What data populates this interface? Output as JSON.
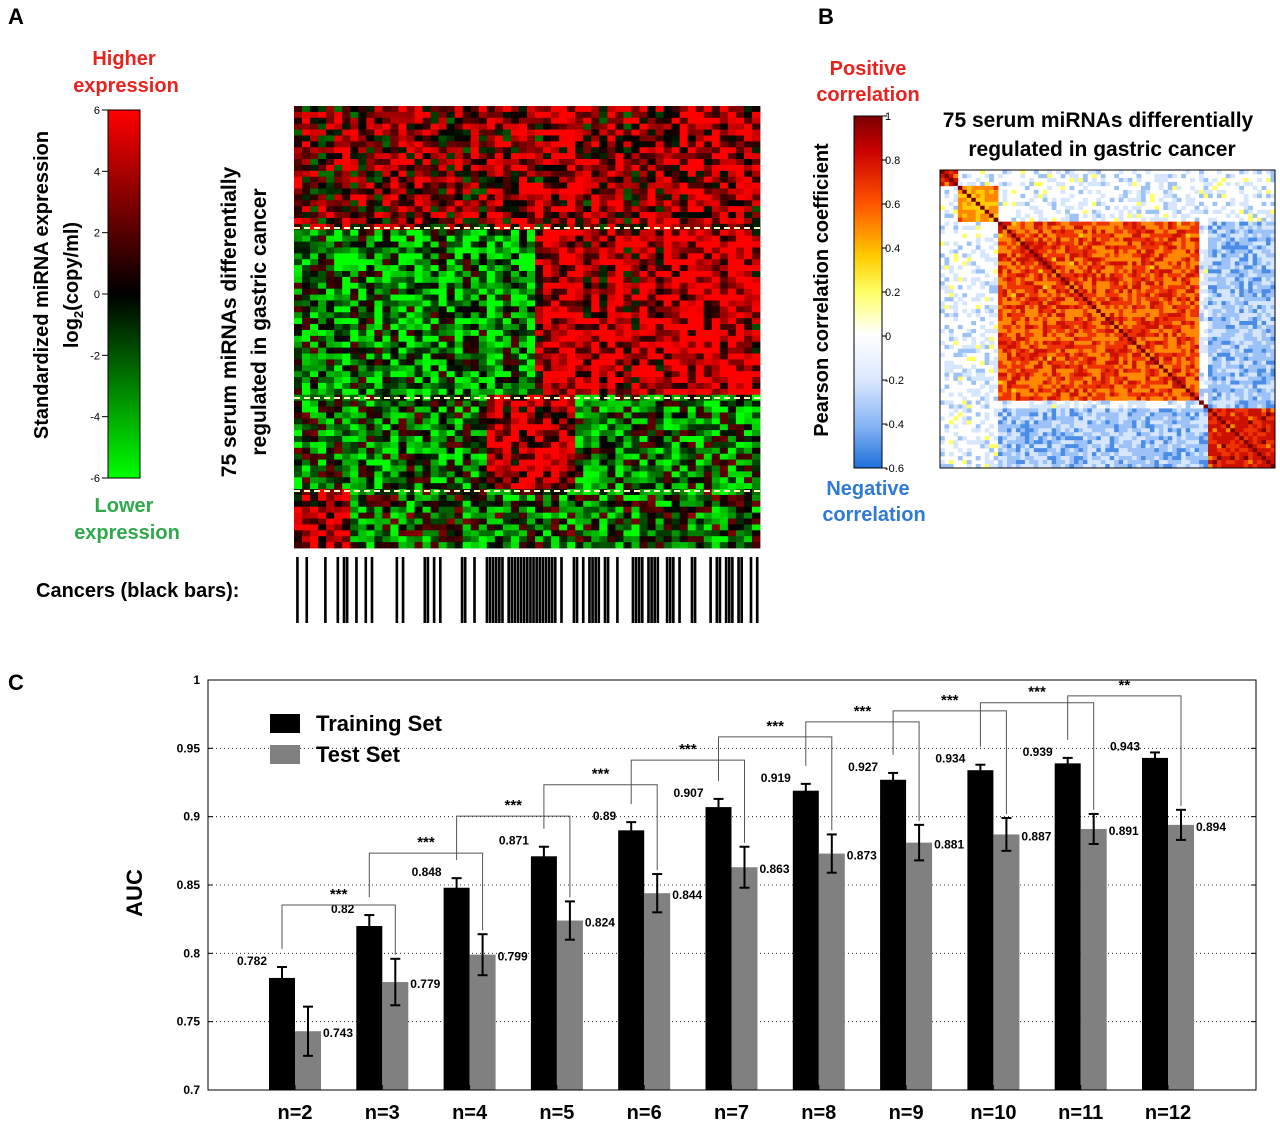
{
  "panel_a": {
    "letter": "A",
    "colorbar": {
      "top_label": [
        "Higher",
        "expression"
      ],
      "bottom_label": [
        "Lower",
        "expression"
      ],
      "axis_title_line1": "Standardized miRNA expression",
      "axis_title_line2_pre": "log",
      "axis_title_line2_sub": "2",
      "axis_title_line2_post": "(copy/ml)",
      "ticks": [
        "6",
        "4",
        "2",
        "0",
        "-2",
        "-4",
        "-6"
      ],
      "colors": {
        "high": "#ff0000",
        "mid": "#000000",
        "low": "#00ff00"
      }
    },
    "heatmap_title": [
      "75 serum miRNAs differentially",
      "regulated in gastric cancer"
    ],
    "cancer_label": "Cancers (black bars):"
  },
  "panel_b": {
    "letter": "B",
    "top_label": [
      "Positive",
      "correlation"
    ],
    "bottom_label": [
      "Negative",
      "correlation"
    ],
    "axis_title": "Pearson correlation coefficient",
    "ticks": [
      "1",
      "0.8",
      "0.6",
      "0.4",
      "0.2",
      "0",
      "-0.2",
      "-0.4",
      "-0.6"
    ],
    "matrix_title": [
      "75 serum miRNAs differentially",
      "regulated in gastric cancer"
    ],
    "colors": {
      "positive": "#cc0000",
      "negative": "#1e6fd9"
    }
  },
  "chart_data": {
    "type": "bar",
    "panel_letter": "C",
    "ylabel": "AUC",
    "ylim": [
      0.7,
      1
    ],
    "yticks": [
      "0.7",
      "0.75",
      "0.8",
      "0.85",
      "0.9",
      "0.95",
      "1"
    ],
    "categories": [
      "n=2",
      "n=3",
      "n=4",
      "n=5",
      "n=6",
      "n=7",
      "n=8",
      "n=9",
      "n=10",
      "n=11",
      "n=12"
    ],
    "series": [
      {
        "name": "Training Set",
        "color": "#000000",
        "values": [
          0.782,
          0.82,
          0.848,
          0.871,
          0.89,
          0.907,
          0.919,
          0.927,
          0.934,
          0.939,
          0.943
        ],
        "labels": [
          "0.782",
          "0.82",
          "0.848",
          "0.871",
          "0.89",
          "0.907",
          "0.919",
          "0.927",
          "0.934",
          "0.939",
          "0.943"
        ],
        "error": [
          0.008,
          0.008,
          0.007,
          0.007,
          0.006,
          0.006,
          0.005,
          0.005,
          0.004,
          0.004,
          0.004
        ]
      },
      {
        "name": "Test Set",
        "color": "#808080",
        "values": [
          0.743,
          0.779,
          0.799,
          0.824,
          0.844,
          0.863,
          0.873,
          0.881,
          0.887,
          0.891,
          0.894
        ],
        "labels": [
          "0.743",
          "0.779",
          "0.799",
          "0.824",
          "0.844",
          "0.863",
          "0.873",
          "0.881",
          "0.887",
          "0.891",
          "0.894"
        ],
        "error": [
          0.018,
          0.017,
          0.015,
          0.014,
          0.014,
          0.015,
          0.014,
          0.013,
          0.012,
          0.011,
          0.011
        ]
      }
    ],
    "significance": [
      {
        "from": 0,
        "to": 1,
        "label": "***"
      },
      {
        "from": 1,
        "to": 2,
        "label": "***"
      },
      {
        "from": 2,
        "to": 3,
        "label": "***"
      },
      {
        "from": 3,
        "to": 4,
        "label": "***"
      },
      {
        "from": 4,
        "to": 5,
        "label": "***"
      },
      {
        "from": 5,
        "to": 6,
        "label": "***"
      },
      {
        "from": 6,
        "to": 7,
        "label": "***"
      },
      {
        "from": 7,
        "to": 8,
        "label": "***"
      },
      {
        "from": 8,
        "to": 9,
        "label": "***"
      },
      {
        "from": 9,
        "to": 10,
        "label": "**"
      }
    ],
    "grid": "horizontal",
    "legend_position": "top-left"
  }
}
